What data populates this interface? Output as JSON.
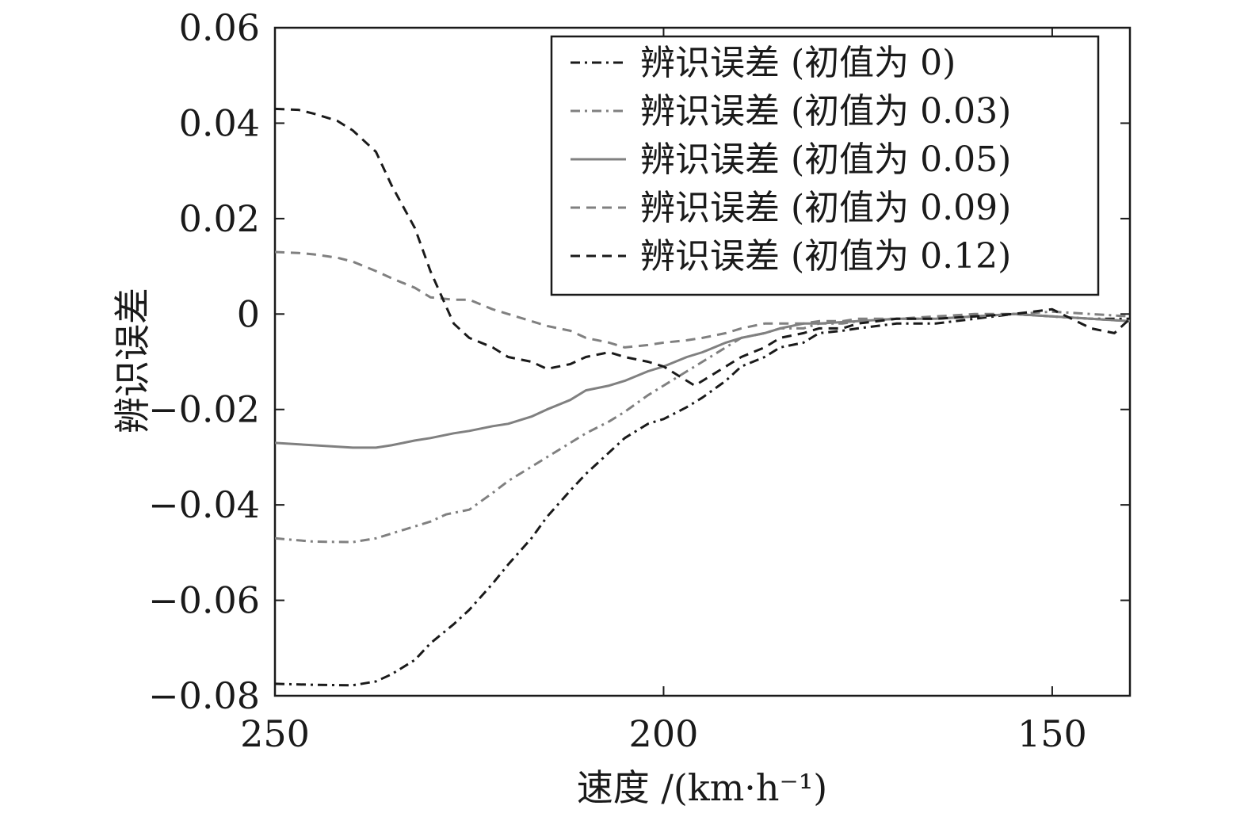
{
  "chart_data": {
    "type": "line",
    "xlabel": "速度 /(km·h⁻¹)",
    "ylabel": "辨识误差",
    "xlim": [
      250,
      140
    ],
    "ylim": [
      -0.08,
      0.06
    ],
    "x_reversed": true,
    "xticks": [
      250,
      200,
      150
    ],
    "xtick_labels": [
      "250",
      "200",
      "150"
    ],
    "yticks": [
      -0.08,
      -0.06,
      -0.04,
      -0.02,
      0,
      0.02,
      0.04,
      0.06
    ],
    "ytick_labels": [
      "−0.08",
      "−0.06",
      "−0.04",
      "−0.02",
      "0",
      "0.02",
      "0.04",
      "0.06"
    ],
    "grid": false,
    "legend_position": "top-right",
    "series": [
      {
        "name": "辨识误差 (初值为 0)",
        "color": "#1a1a1a",
        "dash": "dashdot",
        "x": [
          250,
          245,
          240,
          237,
          235,
          232,
          230,
          227,
          225,
          222,
          220,
          217,
          215,
          212,
          210,
          207,
          205,
          202,
          200,
          197,
          195,
          192,
          190,
          187,
          185,
          182,
          180,
          177,
          175,
          170,
          165,
          160,
          155,
          150,
          145,
          140
        ],
        "y": [
          -0.0775,
          -0.0777,
          -0.0778,
          -0.077,
          -0.0755,
          -0.0725,
          -0.069,
          -0.065,
          -0.062,
          -0.0565,
          -0.0525,
          -0.047,
          -0.0425,
          -0.037,
          -0.0335,
          -0.029,
          -0.026,
          -0.023,
          -0.022,
          -0.0195,
          -0.0175,
          -0.014,
          -0.011,
          -0.009,
          -0.007,
          -0.006,
          -0.004,
          -0.0035,
          -0.003,
          -0.002,
          -0.002,
          -0.001,
          0.0,
          -0.0005,
          -0.001,
          -0.001
        ]
      },
      {
        "name": "辨识误差 (初值为 0.03)",
        "color": "#808080",
        "dash": "dashdot",
        "x": [
          250,
          245,
          240,
          237,
          235,
          232,
          230,
          228,
          225,
          222,
          220,
          217,
          215,
          212,
          210,
          207,
          205,
          202,
          200,
          197,
          195,
          192,
          190,
          187,
          185,
          182,
          180,
          177,
          175,
          170,
          165,
          160,
          155,
          150,
          145,
          140
        ],
        "y": [
          -0.047,
          -0.0477,
          -0.0478,
          -0.047,
          -0.046,
          -0.0445,
          -0.0435,
          -0.042,
          -0.041,
          -0.0375,
          -0.035,
          -0.032,
          -0.03,
          -0.027,
          -0.025,
          -0.0225,
          -0.0205,
          -0.017,
          -0.015,
          -0.012,
          -0.01,
          -0.007,
          -0.005,
          -0.004,
          -0.003,
          -0.003,
          -0.002,
          -0.002,
          -0.0015,
          -0.001,
          -0.001,
          -0.0005,
          0.0,
          0.0005,
          0.0,
          -0.0005
        ]
      },
      {
        "name": "辨识误差 (初值为 0.05)",
        "color": "#808080",
        "dash": "solid",
        "x": [
          250,
          245,
          240,
          237,
          235,
          232,
          230,
          227,
          225,
          222,
          220,
          217,
          215,
          212,
          210,
          207,
          205,
          202,
          200,
          197,
          195,
          192,
          190,
          187,
          185,
          182,
          180,
          175,
          170,
          165,
          160,
          155,
          150,
          145,
          140
        ],
        "y": [
          -0.027,
          -0.0275,
          -0.028,
          -0.028,
          -0.0275,
          -0.0265,
          -0.026,
          -0.025,
          -0.0245,
          -0.0235,
          -0.023,
          -0.0215,
          -0.02,
          -0.018,
          -0.016,
          -0.015,
          -0.014,
          -0.012,
          -0.011,
          -0.009,
          -0.008,
          -0.006,
          -0.005,
          -0.004,
          -0.003,
          -0.002,
          -0.002,
          -0.0015,
          -0.001,
          -0.001,
          -0.0005,
          0.0,
          -0.0005,
          -0.001,
          -0.0015
        ]
      },
      {
        "name": "辨识误差 (初值为 0.09)",
        "color": "#808080",
        "dash": "dashed",
        "x": [
          250,
          247,
          245,
          242,
          240,
          237,
          235,
          232,
          230,
          227,
          225,
          222,
          220,
          217,
          215,
          212,
          210,
          207,
          205,
          202,
          200,
          197,
          195,
          192,
          190,
          187,
          185,
          182,
          180,
          177,
          175,
          170,
          165,
          160,
          155,
          150,
          145,
          140
        ],
        "y": [
          0.013,
          0.0128,
          0.0125,
          0.0118,
          0.011,
          0.009,
          0.0075,
          0.0055,
          0.0035,
          0.003,
          0.003,
          0.001,
          0.0,
          -0.0015,
          -0.0025,
          -0.0035,
          -0.005,
          -0.006,
          -0.007,
          -0.0065,
          -0.006,
          -0.0055,
          -0.005,
          -0.004,
          -0.003,
          -0.002,
          -0.002,
          -0.002,
          -0.0015,
          -0.0015,
          -0.001,
          -0.001,
          -0.0005,
          0.0,
          0.0,
          -0.0005,
          -0.001,
          -0.0015
        ]
      },
      {
        "name": "辨识误差 (初值为 0.12)",
        "color": "#1a1a1a",
        "dash": "dashed",
        "x": [
          250,
          247,
          245,
          242,
          240,
          237,
          235,
          232,
          230,
          227,
          225,
          222,
          220,
          217,
          215,
          212,
          210,
          207,
          205,
          202,
          200,
          198,
          196,
          194,
          192,
          190,
          187,
          185,
          182,
          180,
          177,
          175,
          170,
          165,
          160,
          155,
          150,
          145,
          142,
          140
        ],
        "y": [
          0.043,
          0.0428,
          0.042,
          0.0405,
          0.0385,
          0.034,
          0.027,
          0.018,
          0.009,
          -0.002,
          -0.005,
          -0.007,
          -0.009,
          -0.01,
          -0.0115,
          -0.0105,
          -0.009,
          -0.008,
          -0.009,
          -0.01,
          -0.011,
          -0.013,
          -0.015,
          -0.013,
          -0.011,
          -0.009,
          -0.007,
          -0.005,
          -0.004,
          -0.003,
          -0.003,
          -0.002,
          -0.001,
          -0.001,
          -0.0005,
          0.0,
          0.001,
          -0.003,
          -0.004,
          -0.001
        ]
      }
    ]
  }
}
